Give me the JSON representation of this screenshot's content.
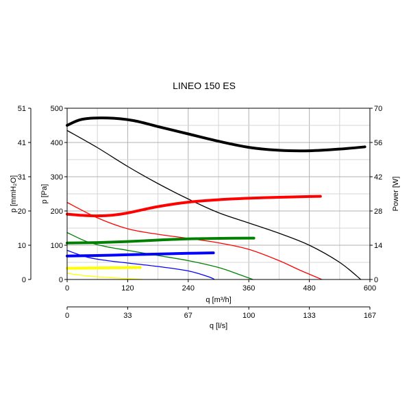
{
  "chart_data": {
    "type": "line",
    "title": "LINEO 150 ES",
    "xlabel": "q [m³/h]",
    "x2label": "q [l/s]",
    "ylabel_pa": "p [Pa]",
    "ylabel_mm": "p [mmH₂O]",
    "ylabel_power": "Power [W]",
    "xlim": [
      0,
      600
    ],
    "ylim": [
      0,
      500
    ],
    "power_lim": [
      0,
      70
    ],
    "x_ticks": [
      "0",
      "120",
      "240",
      "360",
      "480",
      "600"
    ],
    "x2_ticks": [
      "0",
      "33",
      "67",
      "100",
      "133",
      "167"
    ],
    "y_ticks_pa": [
      "0",
      "100",
      "200",
      "300",
      "400",
      "500"
    ],
    "y_ticks_mm": [
      "0",
      "10",
      "20",
      "31",
      "41",
      "51"
    ],
    "y_ticks_power": [
      "0",
      "14",
      "28",
      "42",
      "56",
      "70"
    ],
    "grid": true,
    "series": [
      {
        "color": "#000000",
        "kind": "pressure",
        "x": [
          0,
          60,
          120,
          180,
          240,
          300,
          360,
          420,
          480,
          540,
          582
        ],
        "y": [
          435,
          385,
          330,
          280,
          235,
          195,
          165,
          135,
          100,
          50,
          0
        ]
      },
      {
        "color": "#000000",
        "kind": "power",
        "x": [
          0,
          30,
          80,
          130,
          180,
          240,
          300,
          360,
          420,
          480,
          540,
          590
        ],
        "y": [
          63,
          65.5,
          66,
          65,
          62.5,
          59.5,
          56.5,
          54,
          52.8,
          52.6,
          53.3,
          54.2
        ]
      },
      {
        "color": "#ff0000",
        "kind": "pressure",
        "x": [
          0,
          60,
          120,
          180,
          240,
          300,
          360,
          420,
          460,
          505
        ],
        "y": [
          225,
          180,
          148,
          132,
          120,
          107,
          88,
          55,
          28,
          0
        ]
      },
      {
        "color": "#ff0000",
        "kind": "power",
        "x": [
          0,
          30,
          60,
          90,
          120,
          180,
          240,
          300,
          360,
          420,
          480,
          502
        ],
        "y": [
          26.7,
          26.2,
          26.0,
          26.3,
          27.2,
          29.8,
          31.6,
          32.6,
          33.2,
          33.6,
          33.9,
          34.0
        ]
      },
      {
        "color": "#008000",
        "kind": "pressure",
        "x": [
          0,
          40,
          80,
          120,
          180,
          240,
          300,
          340,
          368
        ],
        "y": [
          137,
          110,
          95,
          85,
          70,
          55,
          35,
          15,
          0
        ]
      },
      {
        "color": "#008000",
        "kind": "power",
        "x": [
          0,
          60,
          120,
          180,
          240,
          300,
          370
        ],
        "y": [
          14.9,
          15.1,
          15.5,
          16.1,
          16.6,
          16.8,
          16.9
        ]
      },
      {
        "color": "#0000ff",
        "kind": "pressure",
        "x": [
          0,
          40,
          80,
          120,
          180,
          240,
          280,
          292
        ],
        "y": [
          85,
          65,
          55,
          48,
          38,
          25,
          8,
          0
        ]
      },
      {
        "color": "#0000ff",
        "kind": "power",
        "x": [
          0,
          60,
          120,
          180,
          240,
          290
        ],
        "y": [
          9.6,
          9.8,
          10.1,
          10.4,
          10.7,
          10.9
        ]
      },
      {
        "color": "#ffff00",
        "kind": "pressure",
        "x": [
          0,
          30,
          60,
          100,
          140,
          150
        ],
        "y": [
          18,
          12,
          8,
          4,
          1,
          0
        ]
      },
      {
        "color": "#ffff00",
        "kind": "power",
        "x": [
          0,
          50,
          100,
          145
        ],
        "y": [
          4.6,
          4.7,
          4.8,
          4.9
        ]
      }
    ]
  }
}
